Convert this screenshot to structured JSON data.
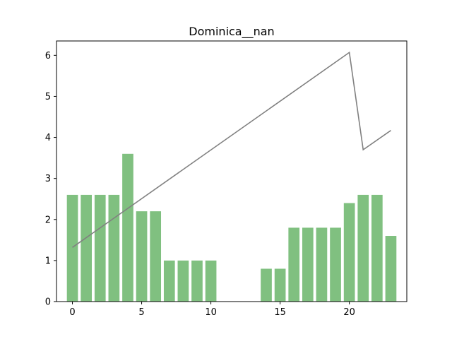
{
  "chart_data": {
    "type": "bar",
    "title": "Dominica__nan",
    "xlabel": "",
    "ylabel": "",
    "xlim": [
      -1.15,
      24.15
    ],
    "ylim": [
      0,
      6.35
    ],
    "x_ticks": [
      0,
      5,
      10,
      15,
      20
    ],
    "y_ticks": [
      0,
      1,
      2,
      3,
      4,
      5,
      6
    ],
    "grid": false,
    "legend": "none",
    "series": [
      {
        "type": "bar",
        "color": "#80c080",
        "x": [
          0,
          1,
          2,
          3,
          4,
          5,
          6,
          7,
          8,
          9,
          10,
          11,
          12,
          13,
          14,
          15,
          16,
          17,
          18,
          19,
          20,
          21,
          22,
          23
        ],
        "values": [
          2.6,
          2.6,
          2.6,
          2.6,
          3.6,
          2.2,
          2.2,
          1.0,
          1.0,
          1.0,
          1.0,
          0,
          0,
          0,
          0.8,
          0.8,
          1.8,
          1.8,
          1.8,
          1.8,
          2.4,
          2.6,
          2.6,
          1.6
        ]
      },
      {
        "type": "line",
        "color": "#808080",
        "x": [
          0,
          20,
          21,
          23
        ],
        "values": [
          1.32,
          6.07,
          3.7,
          4.17
        ]
      }
    ]
  }
}
